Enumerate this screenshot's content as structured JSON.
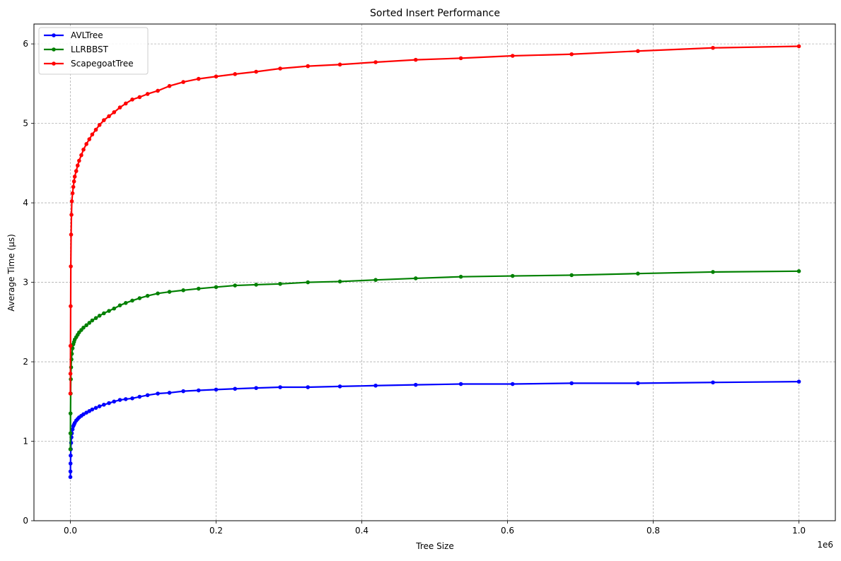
{
  "chart_data": {
    "type": "line",
    "title": "Sorted Insert Performance",
    "xlabel": "Tree Size",
    "ylabel": "Average Time (µs)",
    "x_offset_label": "1e6",
    "xlim": [
      -0.05,
      1.05
    ],
    "ylim": [
      0,
      6.25
    ],
    "x_ticks": [
      0.0,
      0.2,
      0.4,
      0.6,
      0.8,
      1.0
    ],
    "x_tick_labels": [
      "0.0",
      "0.2",
      "0.4",
      "0.6",
      "0.8",
      "1.0"
    ],
    "y_ticks": [
      0,
      1,
      2,
      3,
      4,
      5,
      6
    ],
    "y_tick_labels": [
      "0",
      "1",
      "2",
      "3",
      "4",
      "5",
      "6"
    ],
    "grid": true,
    "legend_position": "top-left",
    "series": [
      {
        "name": "AVLTree",
        "color": "#0000ff",
        "x": [
          0,
          0.0001,
          0.0002,
          0.0004,
          0.0006,
          0.001,
          0.0015,
          0.002,
          0.003,
          0.004,
          0.005,
          0.006,
          0.008,
          0.01,
          0.012,
          0.015,
          0.018,
          0.022,
          0.026,
          0.03,
          0.035,
          0.04,
          0.046,
          0.053,
          0.06,
          0.068,
          0.076,
          0.085,
          0.095,
          0.106,
          0.12,
          0.136,
          0.155,
          0.176,
          0.2,
          0.226,
          0.255,
          0.288,
          0.326,
          0.37,
          0.419,
          0.474,
          0.536,
          0.607,
          0.688,
          0.779,
          0.882,
          1.0
        ],
        "y": [
          0.55,
          0.62,
          0.72,
          0.82,
          0.9,
          0.98,
          1.05,
          1.1,
          1.15,
          1.19,
          1.21,
          1.23,
          1.26,
          1.28,
          1.3,
          1.32,
          1.34,
          1.36,
          1.38,
          1.4,
          1.42,
          1.44,
          1.46,
          1.48,
          1.5,
          1.52,
          1.53,
          1.54,
          1.56,
          1.58,
          1.6,
          1.61,
          1.63,
          1.64,
          1.65,
          1.66,
          1.67,
          1.68,
          1.68,
          1.69,
          1.7,
          1.71,
          1.72,
          1.72,
          1.73,
          1.73,
          1.74,
          1.75
        ]
      },
      {
        "name": "LLRBBST",
        "color": "#008000",
        "x": [
          0,
          0.0001,
          0.0002,
          0.0004,
          0.0006,
          0.001,
          0.0015,
          0.002,
          0.003,
          0.004,
          0.005,
          0.006,
          0.008,
          0.01,
          0.012,
          0.015,
          0.018,
          0.022,
          0.026,
          0.03,
          0.035,
          0.04,
          0.046,
          0.053,
          0.06,
          0.068,
          0.076,
          0.085,
          0.095,
          0.106,
          0.12,
          0.136,
          0.155,
          0.176,
          0.2,
          0.226,
          0.255,
          0.288,
          0.326,
          0.37,
          0.419,
          0.474,
          0.536,
          0.607,
          0.688,
          0.779,
          0.882,
          1.0
        ],
        "y": [
          0.9,
          1.1,
          1.35,
          1.6,
          1.78,
          1.93,
          2.03,
          2.1,
          2.17,
          2.22,
          2.25,
          2.28,
          2.31,
          2.34,
          2.37,
          2.4,
          2.43,
          2.46,
          2.49,
          2.52,
          2.55,
          2.58,
          2.61,
          2.64,
          2.67,
          2.71,
          2.74,
          2.77,
          2.8,
          2.83,
          2.86,
          2.88,
          2.9,
          2.92,
          2.94,
          2.96,
          2.97,
          2.98,
          3.0,
          3.01,
          3.03,
          3.05,
          3.07,
          3.08,
          3.09,
          3.11,
          3.13,
          3.14
        ]
      },
      {
        "name": "ScapegoatTree",
        "color": "#ff0000",
        "x": [
          0,
          0.0001,
          0.0002,
          0.0004,
          0.0006,
          0.001,
          0.0015,
          0.002,
          0.003,
          0.004,
          0.005,
          0.006,
          0.008,
          0.01,
          0.012,
          0.015,
          0.018,
          0.022,
          0.026,
          0.03,
          0.035,
          0.04,
          0.046,
          0.053,
          0.06,
          0.068,
          0.076,
          0.085,
          0.095,
          0.106,
          0.12,
          0.136,
          0.155,
          0.176,
          0.2,
          0.226,
          0.255,
          0.288,
          0.326,
          0.37,
          0.419,
          0.474,
          0.536,
          0.607,
          0.688,
          0.779,
          0.882,
          1.0
        ],
        "y": [
          1.6,
          1.85,
          2.2,
          2.7,
          3.2,
          3.6,
          3.85,
          4.02,
          4.12,
          4.2,
          4.27,
          4.33,
          4.4,
          4.47,
          4.53,
          4.6,
          4.67,
          4.74,
          4.8,
          4.86,
          4.92,
          4.98,
          5.04,
          5.09,
          5.14,
          5.2,
          5.25,
          5.3,
          5.33,
          5.37,
          5.41,
          5.47,
          5.52,
          5.56,
          5.59,
          5.62,
          5.65,
          5.69,
          5.72,
          5.74,
          5.77,
          5.8,
          5.82,
          5.85,
          5.87,
          5.91,
          5.95,
          5.97
        ]
      }
    ]
  }
}
